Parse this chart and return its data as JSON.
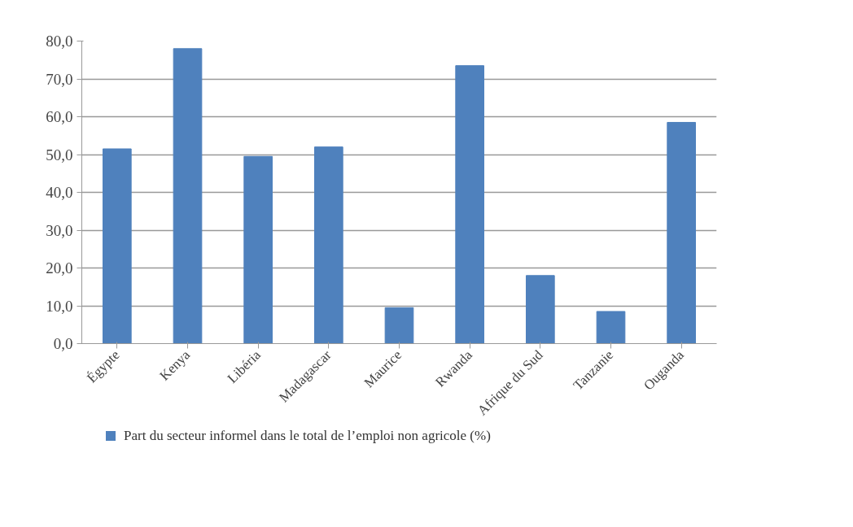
{
  "chart_data": {
    "type": "bar",
    "categories": [
      "Égypte",
      "Kenya",
      "Libéria",
      "Madagascar",
      "Maurice",
      "Rwanda",
      "Afrique du Sud",
      "Tanzanie",
      "Ouganda"
    ],
    "series": [
      {
        "name": "Part du secteur informel dans le total de l’emploi non agricole (%)",
        "color": "#4f81bd",
        "values": [
          51.5,
          78.0,
          49.5,
          52.0,
          9.5,
          73.5,
          18.0,
          8.5,
          58.5
        ]
      }
    ],
    "ylim": [
      0,
      80
    ],
    "yticks": [
      {
        "value": 0,
        "label": "0,0"
      },
      {
        "value": 10,
        "label": "10,0"
      },
      {
        "value": 20,
        "label": "20,0"
      },
      {
        "value": 30,
        "label": "30,0"
      },
      {
        "value": 40,
        "label": "40,0"
      },
      {
        "value": 50,
        "label": "50,0"
      },
      {
        "value": 60,
        "label": "60,0"
      },
      {
        "value": 70,
        "label": "70,0"
      },
      {
        "value": 80,
        "label": "80,0"
      }
    ],
    "grid": "y",
    "legend": "bottom"
  }
}
